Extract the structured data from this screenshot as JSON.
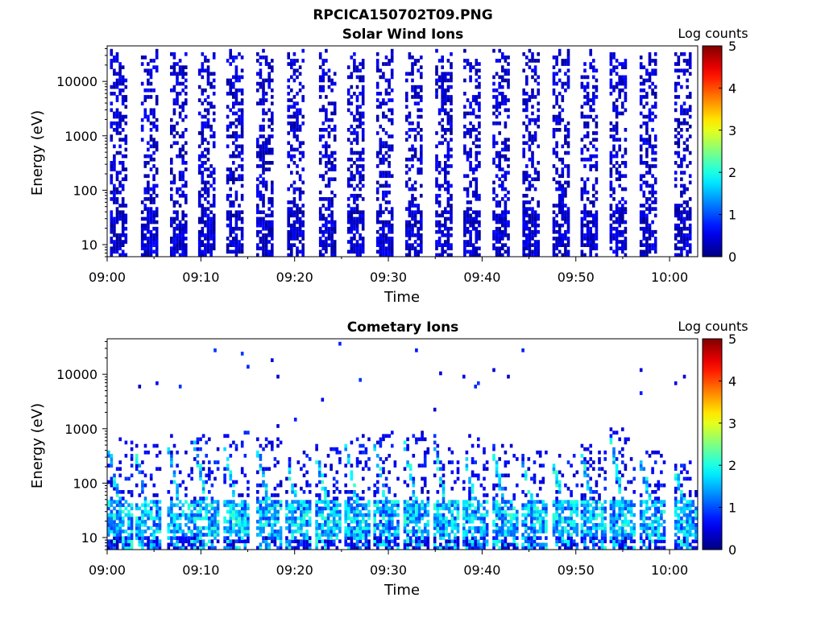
{
  "figure": {
    "title": "RPCICA150702T09.PNG"
  },
  "chart_data": [
    {
      "type": "heatmap",
      "title": "Solar Wind Ions",
      "xlabel": "Time",
      "ylabel": "Energy (eV)",
      "x_ticks": [
        "09:00",
        "09:10",
        "09:20",
        "09:30",
        "09:40",
        "09:50",
        "10:00"
      ],
      "xlim": [
        "09:00",
        "10:03"
      ],
      "y_scale": "log",
      "y_ticks": [
        10,
        100,
        1000,
        10000
      ],
      "y_tick_labels": [
        "10",
        "100",
        "1000",
        "10000"
      ],
      "ylim": [
        6,
        45000
      ],
      "colorbar": {
        "label": "Log counts",
        "ticks": [
          "0",
          "1",
          "2",
          "3",
          "4",
          "5"
        ],
        "range": [
          0,
          5
        ],
        "colormap": "jet"
      },
      "sweep_start_minutes": [
        0.3,
        3.6,
        6.7,
        9.7,
        12.7,
        15.9,
        19.2,
        22.6,
        25.6,
        28.7,
        31.8,
        35.0,
        38.0,
        41.1,
        44.3,
        47.5,
        50.5,
        53.6,
        56.8,
        60.5
      ],
      "sweep_width_minutes": 2.0,
      "energy_range_eV": [
        6,
        30000
      ],
      "typical_log_counts": [
        0,
        0.6
      ],
      "grid": false
    },
    {
      "type": "heatmap",
      "title": "Cometary Ions",
      "xlabel": "Time",
      "ylabel": "Energy (eV)",
      "x_ticks": [
        "09:00",
        "09:10",
        "09:20",
        "09:30",
        "09:40",
        "09:50",
        "10:00"
      ],
      "xlim": [
        "09:00",
        "10:03"
      ],
      "y_scale": "log",
      "y_ticks": [
        10,
        100,
        1000,
        10000
      ],
      "y_tick_labels": [
        "10",
        "100",
        "1000",
        "10000"
      ],
      "ylim": [
        6,
        45000
      ],
      "colorbar": {
        "label": "Log counts",
        "ticks": [
          "0",
          "1",
          "2",
          "3",
          "4",
          "5"
        ],
        "range": [
          0,
          5
        ],
        "colormap": "jet"
      },
      "sweep_start_minutes": [
        0.0,
        3.0,
        6.4,
        9.2,
        12.4,
        15.9,
        19.0,
        22.2,
        25.3,
        28.4,
        31.6,
        34.8,
        37.9,
        41.1,
        44.2,
        47.5,
        50.5,
        53.6,
        56.8,
        60.5
      ],
      "burst_peak_energy_eV": [
        450,
        300,
        500,
        520,
        500,
        450,
        250,
        300,
        500,
        550,
        520,
        480,
        500,
        300,
        250,
        200,
        300,
        600,
        250,
        150
      ],
      "core_energy_range_eV": [
        8,
        45
      ],
      "typical_log_counts": [
        0,
        2.2
      ],
      "grid": false
    }
  ]
}
